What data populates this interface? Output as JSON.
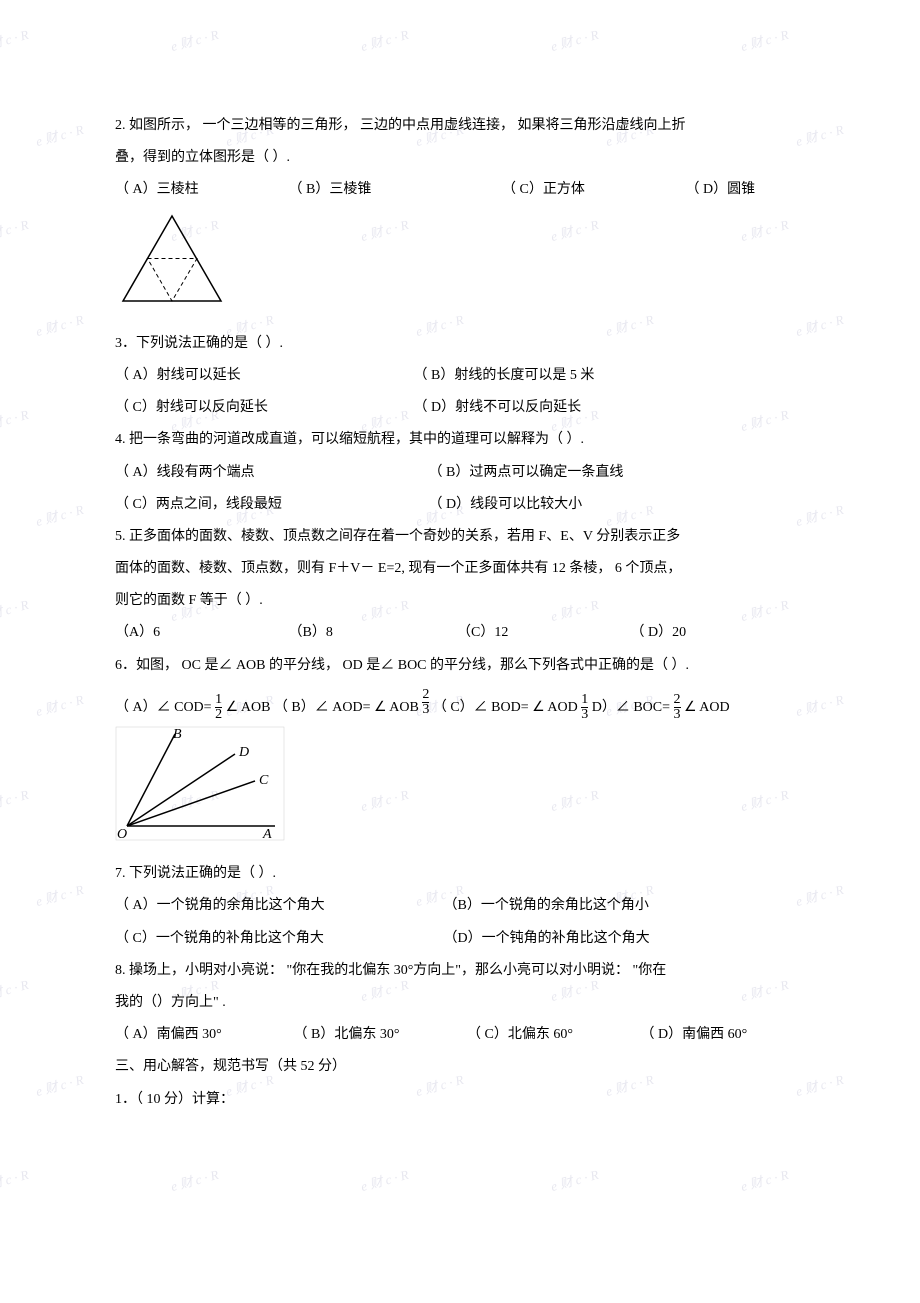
{
  "watermark_text": "e 财 c · R",
  "colors": {
    "text": "#000000",
    "watermark": "#e8e8f0",
    "background": "#ffffff"
  },
  "q2": {
    "stem_a": "2. 如图所示，  一个三边相等的三角形，   三边的中点用虚线连接，    如果将三角形沿虚线向上折",
    "stem_b": "叠，得到的立体图形是（        ）.",
    "A": "（ A）三棱柱",
    "B": "（ B）三棱锥",
    "C": "（ C）正方体",
    "D": "（ D）圆锥"
  },
  "q3": {
    "stem": "3．下列说法正确的是（        ）.",
    "A": "（ A）射线可以延长",
    "B": "（ B）射线的长度可以是   5 米",
    "C": "（ C）射线可以反向延长",
    "D": "（ D）射线不可以反向延长"
  },
  "q4": {
    "stem": "4. 把一条弯曲的河道改成直道，可以缩短航程，其中的道理可以解释为（          ）.",
    "A": "（ A）线段有两个端点",
    "B": "（ B）过两点可以确定一条直线",
    "C": "（ C）两点之间，线段最短",
    "D": "（ D）线段可以比较大小"
  },
  "q5": {
    "stem_a": "5. 正多面体的面数、棱数、顶点数之间存在着一个奇妙的关系，若用      F、E、V 分别表示正多",
    "stem_b": "面体的面数、棱数、顶点数，则有    F＋V－ E=2, 现有一个正多面体共有   12 条棱， 6 个顶点，",
    "stem_c": "则它的面数  F 等于（      ）.",
    "A": "（A）6",
    "B": "（B）8",
    "C": "（C）12",
    "D": "（ D）20"
  },
  "q6": {
    "stem": "6．如图， OC 是∠ AOB 的平分线， OD 是∠ BOC 的平分线，那么下列各式中正确的是（      ）.",
    "A_pre": "（ A）∠ COD= ",
    "A_post": " ∠ AOB",
    "B_pre": "（ B）∠ AOD=  ∠ AOB",
    "C_pre": "（ C）∠ BOD=  ∠ AOD ",
    "D_pre": " D）∠ BOC=     ",
    "D_post": " ∠ AOD",
    "f1n": "1",
    "f1d": "2",
    "f2n": "2",
    "f2d": "3",
    "f3n": "1",
    "f3d": "3",
    "f4n": "2",
    "f4d": "3"
  },
  "q7": {
    "stem": "7. 下列说法正确的是（        ）.",
    "A": "（ A）一个锐角的余角比这个角大",
    "B": "（B）一个锐角的余角比这个角小",
    "C": "（ C）一个锐角的补角比这个角大",
    "D": "（D）一个钝角的补角比这个角大"
  },
  "q8": {
    "stem_a": "8. 操场上，小明对小亮说：  \"你在我的北偏东   30°方向上\"，那么小亮可以对小明说：   \"你在",
    "stem_b": "我的（）方向上\"   .",
    "A": "（ A）南偏西   30°",
    "B": "（ B）北偏东   30°",
    "C": "（ C）北偏东   60°",
    "D": "（ D）南偏西   60°"
  },
  "s3": {
    "title": "三、用心解答，规范书写（共     52 分）",
    "item1": "1．（ 10 分）计算："
  }
}
